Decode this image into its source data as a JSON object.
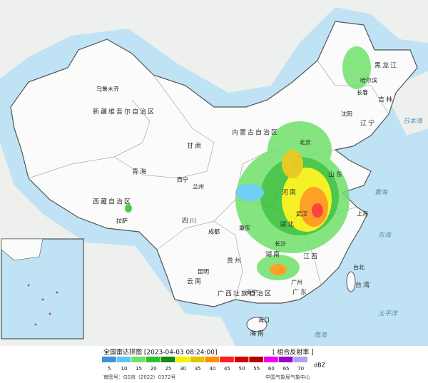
{
  "map": {
    "labels": [
      "新疆维吾尔自治区",
      "西藏自治区",
      "青海",
      "甘肃",
      "内蒙古自治区",
      "黑龙江",
      "吉林",
      "辽宁",
      "四川",
      "云南",
      "湖南",
      "湖北",
      "广东",
      "广西壮族自治区",
      "海南",
      "台湾",
      "贵州",
      "山东",
      "河南",
      "江西"
    ],
    "cities": [
      "乌鲁木齐",
      "拉萨",
      "北京",
      "上海",
      "成都",
      "重庆",
      "昆明",
      "南宁",
      "海口",
      "台北",
      "哈尔滨",
      "长春",
      "沈阳",
      "西宁",
      "兰州",
      "武汉",
      "长沙",
      "广州"
    ],
    "seas": [
      "日本海",
      "东海",
      "南海",
      "太平洋",
      "黄海"
    ]
  },
  "legend": {
    "title": "全国雷达拼图 [2023-04-03 08:24:00]",
    "product": "[ 组合反射率 ]",
    "unit": "dBZ",
    "items": [
      {
        "value": 5,
        "color": "#3d8fe0"
      },
      {
        "value": 10,
        "color": "#5cc8f2"
      },
      {
        "value": 15,
        "color": "#6fe06b"
      },
      {
        "value": 20,
        "color": "#2fbf2f"
      },
      {
        "value": 25,
        "color": "#128a12"
      },
      {
        "value": 30,
        "color": "#f5f000"
      },
      {
        "value": 35,
        "color": "#e3c200"
      },
      {
        "value": 40,
        "color": "#ff9100"
      },
      {
        "value": 45,
        "color": "#ff2020"
      },
      {
        "value": 50,
        "color": "#d80000"
      },
      {
        "value": 55,
        "color": "#b40000"
      },
      {
        "value": 60,
        "color": "#f000f0"
      },
      {
        "value": 65,
        "color": "#9a00c8"
      },
      {
        "value": 70,
        "color": "#b4a0ee"
      }
    ]
  },
  "footer": {
    "approval": "审图号：GS京（2022）0372号",
    "source": "中国气象局气象中心"
  }
}
